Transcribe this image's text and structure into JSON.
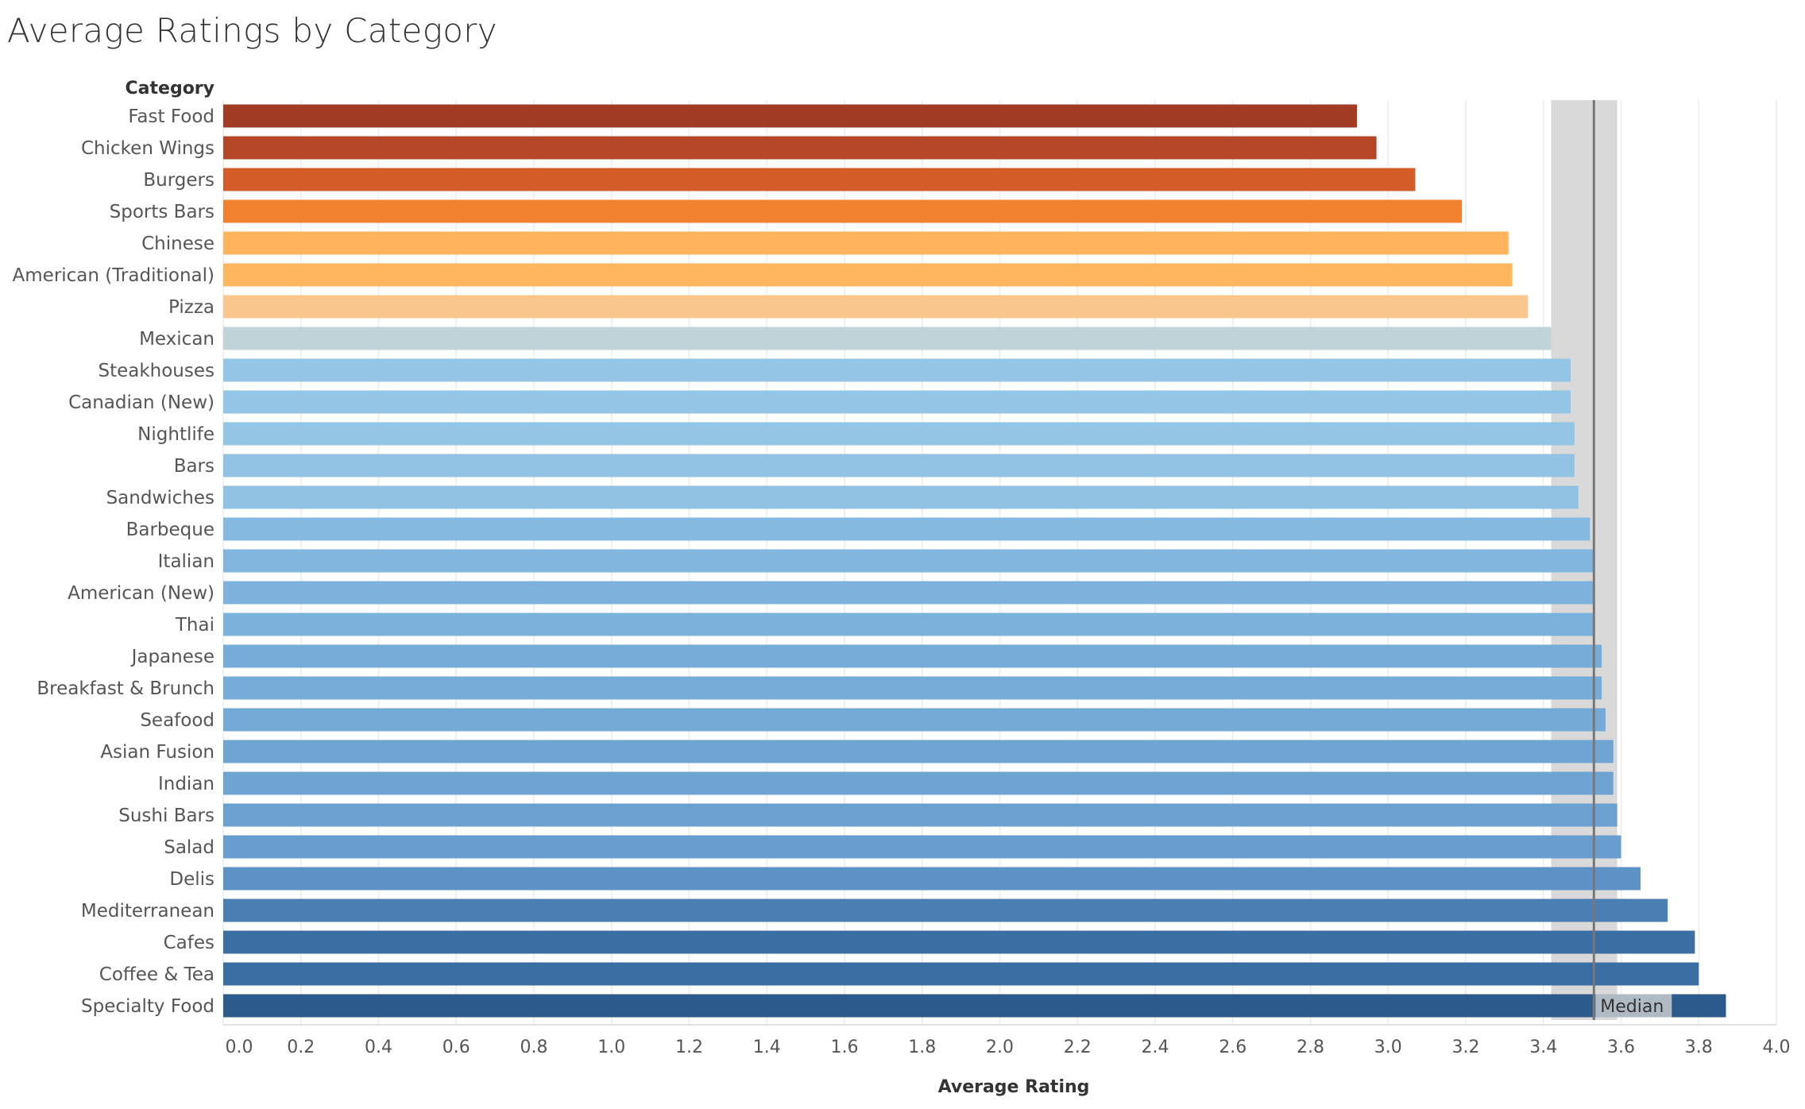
{
  "chart_data": {
    "type": "bar",
    "orientation": "horizontal",
    "title": "Average Ratings by Category",
    "category_header": "Category",
    "xlabel": "Average Rating",
    "xlim": [
      0,
      4.0
    ],
    "x_ticks": [
      "0.0",
      "0.2",
      "0.4",
      "0.6",
      "0.8",
      "1.0",
      "1.2",
      "1.4",
      "1.6",
      "1.8",
      "2.0",
      "2.2",
      "2.4",
      "2.6",
      "2.8",
      "3.0",
      "3.2",
      "3.4",
      "3.6",
      "3.8",
      "4.0"
    ],
    "grid": "vertical",
    "reference_line": {
      "label": "Median",
      "value": 3.53,
      "band": [
        3.42,
        3.59
      ]
    },
    "categories": [
      "Fast Food",
      "Chicken Wings",
      "Burgers",
      "Sports Bars",
      "Chinese",
      "American (Traditional)",
      "Pizza",
      "Mexican",
      "Steakhouses",
      "Canadian (New)",
      "Nightlife",
      "Bars",
      "Sandwiches",
      "Barbeque",
      "Italian",
      "American (New)",
      "Thai",
      "Japanese",
      "Breakfast & Brunch",
      "Seafood",
      "Asian Fusion",
      "Indian",
      "Sushi Bars",
      "Salad",
      "Delis",
      "Mediterranean",
      "Cafes",
      "Coffee & Tea",
      "Specialty Food"
    ],
    "values": [
      2.92,
      2.97,
      3.07,
      3.19,
      3.31,
      3.32,
      3.36,
      3.42,
      3.47,
      3.47,
      3.48,
      3.48,
      3.49,
      3.52,
      3.53,
      3.53,
      3.53,
      3.55,
      3.55,
      3.56,
      3.58,
      3.58,
      3.59,
      3.6,
      3.65,
      3.72,
      3.79,
      3.8,
      3.87
    ],
    "colors": [
      "#a23b24",
      "#b44727",
      "#d35c28",
      "#f28130",
      "#ffb35c",
      "#ffb65f",
      "#f9c68d",
      "#bfd3d8",
      "#93c5e6",
      "#93c5e6",
      "#93c5e5",
      "#92c3e4",
      "#91c2e3",
      "#86b9e0",
      "#82b6de",
      "#7eb2dc",
      "#7cb1dc",
      "#78acd8",
      "#78acd8",
      "#75a9d6",
      "#70a4d3",
      "#6fa3d2",
      "#6ca0d1",
      "#699ccf",
      "#5e92c7",
      "#4b7fb4",
      "#3b6ea3",
      "#3a6da2",
      "#2c5a8b"
    ]
  }
}
